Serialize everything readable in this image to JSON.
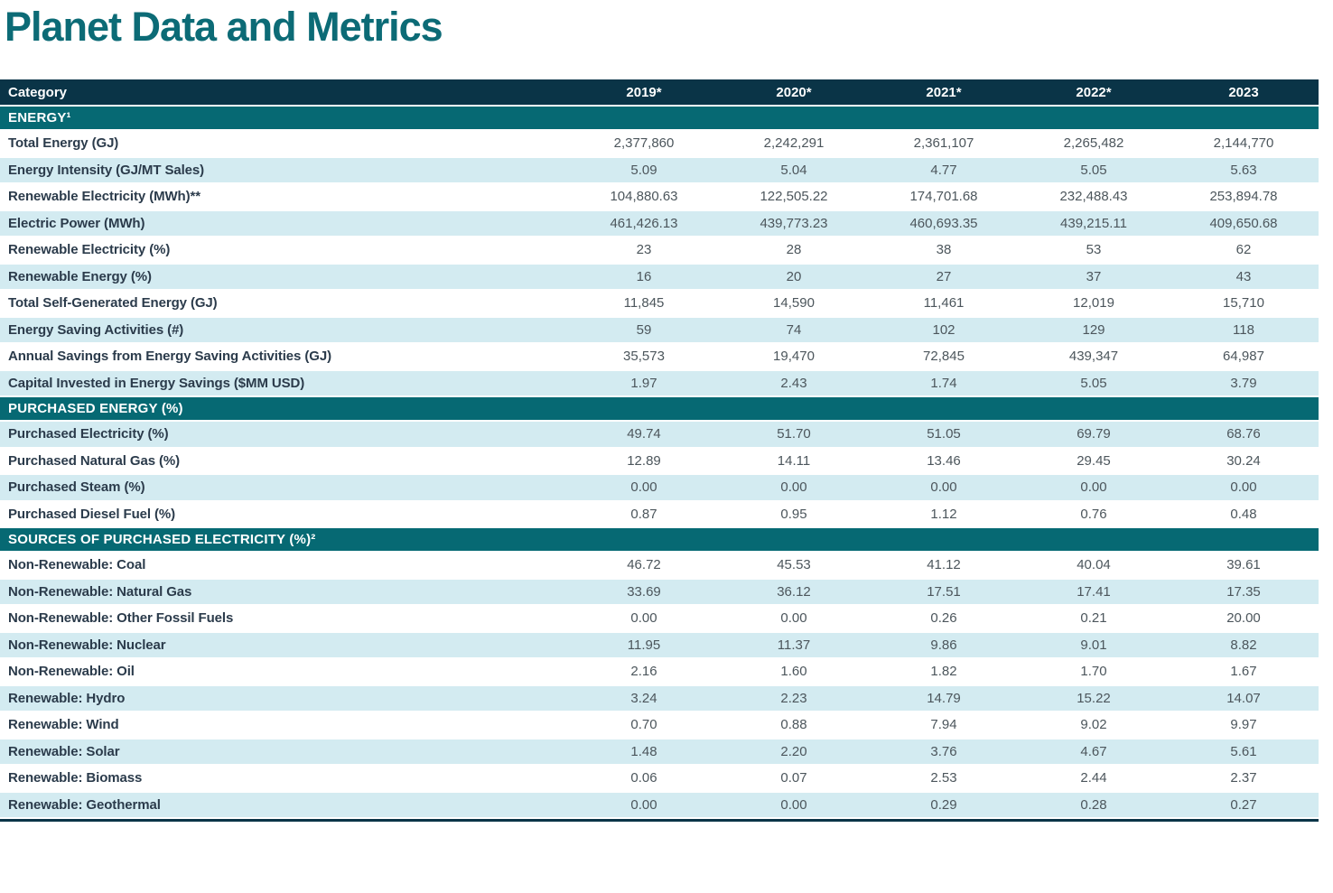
{
  "page": {
    "title": "Planet Data and Metrics"
  },
  "colors": {
    "header_bg": "#0a3447",
    "section_bg": "#066973",
    "stripe": "#d3ebf1",
    "title_color": "#0c6b76",
    "label_color": "#2b3b4b",
    "value_color": "#4c565c"
  },
  "table": {
    "header": {
      "category": "Category",
      "years": [
        "2019*",
        "2020*",
        "2021*",
        "2022*",
        "2023"
      ]
    },
    "sections": [
      {
        "title": "ENERGY¹",
        "rows": [
          {
            "label": "Total Energy (GJ)",
            "values": [
              "2,377,860",
              "2,242,291",
              "2,361,107",
              "2,265,482",
              "2,144,770"
            ]
          },
          {
            "label": "Energy Intensity (GJ/MT Sales)",
            "values": [
              "5.09",
              "5.04",
              "4.77",
              "5.05",
              "5.63"
            ]
          },
          {
            "label": "Renewable Electricity (MWh)**",
            "values": [
              "104,880.63",
              "122,505.22",
              "174,701.68",
              "232,488.43",
              "253,894.78"
            ]
          },
          {
            "label": "Electric Power (MWh)",
            "values": [
              "461,426.13",
              "439,773.23",
              "460,693.35",
              "439,215.11",
              "409,650.68"
            ]
          },
          {
            "label": "Renewable Electricity (%)",
            "values": [
              "23",
              "28",
              "38",
              "53",
              "62"
            ]
          },
          {
            "label": "Renewable Energy (%)",
            "values": [
              "16",
              "20",
              "27",
              "37",
              "43"
            ]
          },
          {
            "label": "Total Self-Generated Energy (GJ)",
            "values": [
              "11,845",
              "14,590",
              "11,461",
              "12,019",
              "15,710"
            ]
          },
          {
            "label": "Energy Saving Activities (#)",
            "values": [
              "59",
              "74",
              "102",
              "129",
              "118"
            ]
          },
          {
            "label": "Annual Savings from Energy Saving Activities (GJ)",
            "values": [
              "35,573",
              "19,470",
              "72,845",
              "439,347",
              "64,987"
            ]
          },
          {
            "label": "Capital Invested in Energy Savings ($MM USD)",
            "values": [
              "1.97",
              "2.43",
              "1.74",
              "5.05",
              "3.79"
            ]
          }
        ]
      },
      {
        "title": "PURCHASED ENERGY (%)",
        "rows": [
          {
            "label": "Purchased Electricity (%)",
            "values": [
              "49.74",
              "51.70",
              "51.05",
              "69.79",
              "68.76"
            ]
          },
          {
            "label": "Purchased Natural Gas (%)",
            "values": [
              "12.89",
              "14.11",
              "13.46",
              "29.45",
              "30.24"
            ]
          },
          {
            "label": "Purchased Steam (%)",
            "values": [
              "0.00",
              "0.00",
              "0.00",
              "0.00",
              "0.00"
            ]
          },
          {
            "label": "Purchased Diesel Fuel (%)",
            "values": [
              "0.87",
              "0.95",
              "1.12",
              "0.76",
              "0.48"
            ]
          }
        ]
      },
      {
        "title": "SOURCES OF PURCHASED ELECTRICITY (%)²",
        "rows": [
          {
            "label": "Non-Renewable: Coal",
            "values": [
              "46.72",
              "45.53",
              "41.12",
              "40.04",
              "39.61"
            ]
          },
          {
            "label": "Non-Renewable: Natural Gas",
            "values": [
              "33.69",
              "36.12",
              "17.51",
              "17.41",
              "17.35"
            ]
          },
          {
            "label": "Non-Renewable: Other Fossil Fuels",
            "values": [
              "0.00",
              "0.00",
              "0.26",
              "0.21",
              "20.00"
            ]
          },
          {
            "label": "Non-Renewable: Nuclear",
            "values": [
              "11.95",
              "11.37",
              "9.86",
              "9.01",
              "8.82"
            ]
          },
          {
            "label": "Non-Renewable: Oil",
            "values": [
              "2.16",
              "1.60",
              "1.82",
              "1.70",
              "1.67"
            ]
          },
          {
            "label": "Renewable: Hydro",
            "values": [
              "3.24",
              "2.23",
              "14.79",
              "15.22",
              "14.07"
            ]
          },
          {
            "label": "Renewable: Wind",
            "values": [
              "0.70",
              "0.88",
              "7.94",
              "9.02",
              "9.97"
            ]
          },
          {
            "label": "Renewable: Solar",
            "values": [
              "1.48",
              "2.20",
              "3.76",
              "4.67",
              "5.61"
            ]
          },
          {
            "label": "Renewable: Biomass",
            "values": [
              "0.06",
              "0.07",
              "2.53",
              "2.44",
              "2.37"
            ]
          },
          {
            "label": "Renewable: Geothermal",
            "values": [
              "0.00",
              "0.00",
              "0.29",
              "0.28",
              "0.27"
            ]
          }
        ]
      }
    ]
  }
}
